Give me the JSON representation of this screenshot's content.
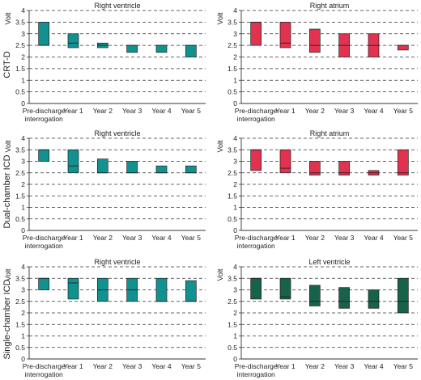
{
  "chart_data": [
    {
      "type": "bar",
      "row": "CRT-D",
      "title": "Right ventricle",
      "ylabel": "Volt",
      "ylim": [
        0,
        4
      ],
      "yticks": [
        0,
        0.5,
        1,
        1.5,
        2,
        2.5,
        3,
        3.5,
        4
      ],
      "grid": "dashed",
      "color": "#11918f",
      "categories": [
        "Pre-discharge\ninterrogation",
        "Year 1",
        "Year 2",
        "Year 3",
        "Year 4",
        "Year 5"
      ],
      "ranges": [
        {
          "low": 2.5,
          "high": 3.5,
          "median": 2.5
        },
        {
          "low": 2.4,
          "high": 3.0,
          "median": 2.6
        },
        {
          "low": 2.4,
          "high": 2.6,
          "median": 2.5
        },
        {
          "low": 2.2,
          "high": 2.5,
          "median": 2.5
        },
        {
          "low": 2.2,
          "high": 2.5,
          "median": 2.5
        },
        {
          "low": 2.0,
          "high": 2.5,
          "median": 2.5
        }
      ]
    },
    {
      "type": "bar",
      "row": "CRT-D",
      "title": "Right atrium",
      "ylabel": "Volt",
      "ylim": [
        0,
        4
      ],
      "yticks": [
        0,
        0.5,
        1,
        1.5,
        2,
        2.5,
        3,
        3.5,
        4
      ],
      "grid": "dashed",
      "color": "#e1334f",
      "categories": [
        "Pre-discharge\ninterrogation",
        "Year 1",
        "Year 2",
        "Year 3",
        "Year 4",
        "Year 5"
      ],
      "ranges": [
        {
          "low": 2.5,
          "high": 3.5,
          "median": 3.5
        },
        {
          "low": 2.4,
          "high": 3.5,
          "median": 2.6
        },
        {
          "low": 2.2,
          "high": 3.2,
          "median": 2.5
        },
        {
          "low": 2.0,
          "high": 3.0,
          "median": 2.5
        },
        {
          "low": 2.0,
          "high": 3.0,
          "median": 2.5
        },
        {
          "low": 2.3,
          "high": 2.5,
          "median": 2.5
        }
      ]
    },
    {
      "type": "bar",
      "row": "Dual-chamber ICD",
      "title": "Right ventricle",
      "ylabel": "Volt",
      "ylim": [
        0,
        4
      ],
      "yticks": [
        0,
        0.5,
        1,
        1.5,
        2,
        2.5,
        3,
        3.5,
        4
      ],
      "grid": "dashed",
      "color": "#11918f",
      "categories": [
        "Pre-discharge\ninterrogation",
        "Year 1",
        "Year 2",
        "Year 3",
        "Year 4",
        "Year 5"
      ],
      "ranges": [
        {
          "low": 3.0,
          "high": 3.5,
          "median": 3.5
        },
        {
          "low": 2.5,
          "high": 3.5,
          "median": 2.8
        },
        {
          "low": 2.5,
          "high": 3.1,
          "median": 2.5
        },
        {
          "low": 2.5,
          "high": 3.0,
          "median": 2.5
        },
        {
          "low": 2.5,
          "high": 2.8,
          "median": 2.5
        },
        {
          "low": 2.5,
          "high": 2.8,
          "median": 2.5
        }
      ]
    },
    {
      "type": "bar",
      "row": "Dual-chamber ICD",
      "title": "Right atrium",
      "ylabel": "Volt",
      "ylim": [
        0,
        4
      ],
      "yticks": [
        0,
        0.5,
        1,
        1.5,
        2,
        2.5,
        3,
        3.5,
        4
      ],
      "grid": "dashed",
      "color": "#e1334f",
      "categories": [
        "Pre-discharge\ninterrogation",
        "Year 1",
        "Year 2",
        "Year 3",
        "Year 4",
        "Year 5"
      ],
      "ranges": [
        {
          "low": 2.6,
          "high": 3.5,
          "median": 3.5
        },
        {
          "low": 2.5,
          "high": 3.5,
          "median": 2.7
        },
        {
          "low": 2.4,
          "high": 3.0,
          "median": 2.5
        },
        {
          "low": 2.4,
          "high": 3.0,
          "median": 2.5
        },
        {
          "low": 2.4,
          "high": 2.6,
          "median": 2.5
        },
        {
          "low": 2.4,
          "high": 3.5,
          "median": 2.5
        }
      ]
    },
    {
      "type": "bar",
      "row": "Single-chamber ICD",
      "title": "Right ventricle",
      "ylabel": "Volt",
      "ylim": [
        0,
        4
      ],
      "yticks": [
        0,
        0.5,
        1,
        1.5,
        2,
        2.5,
        3,
        3.5,
        4
      ],
      "grid": "dashed",
      "color": "#11918f",
      "categories": [
        "Pre-discharge\ninterrogation",
        "Year 1",
        "Year 2",
        "Year 3",
        "Year 4",
        "Year 5"
      ],
      "ranges": [
        {
          "low": 3.0,
          "high": 3.5,
          "median": 3.5
        },
        {
          "low": 2.6,
          "high": 3.5,
          "median": 3.3
        },
        {
          "low": 2.5,
          "high": 3.5,
          "median": 3.0
        },
        {
          "low": 2.5,
          "high": 3.5,
          "median": 3.0
        },
        {
          "low": 2.5,
          "high": 3.5,
          "median": 2.5
        },
        {
          "low": 2.5,
          "high": 3.4,
          "median": 2.5
        }
      ]
    },
    {
      "type": "bar",
      "row": "Single-chamber ICD",
      "title": "Left ventricle",
      "ylabel": "Volt",
      "ylim": [
        0,
        4
      ],
      "yticks": [
        0,
        0.5,
        1,
        1.5,
        2,
        2.5,
        3,
        3.5,
        4
      ],
      "grid": "dashed",
      "color": "#17624a",
      "categories": [
        "Pre-discharge\ninterrogation",
        "Year 1",
        "Year 2",
        "Year 3",
        "Year 4",
        "Year 5"
      ],
      "ranges": [
        {
          "low": 2.6,
          "high": 3.5,
          "median": 3.5
        },
        {
          "low": 2.6,
          "high": 3.5,
          "median": 2.7
        },
        {
          "low": 2.3,
          "high": 3.2,
          "median": 2.5
        },
        {
          "low": 2.2,
          "high": 3.1,
          "median": 2.5
        },
        {
          "low": 2.2,
          "high": 3.0,
          "median": 2.5
        },
        {
          "low": 2.0,
          "high": 3.5,
          "median": 2.5
        }
      ]
    }
  ],
  "row_labels": [
    "CRT-D",
    "Dual-chamber ICD",
    "Single-chamber ICD"
  ]
}
